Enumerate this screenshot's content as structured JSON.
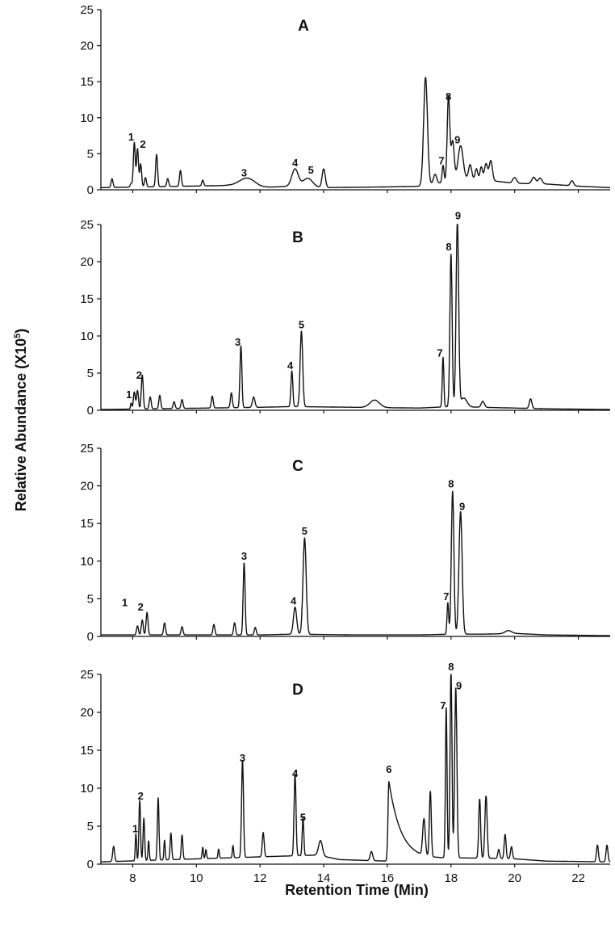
{
  "chart_data": {
    "type": "line",
    "xlabel": "Retention Time (Min)",
    "ylabel": {
      "main": "Relative Abundance (X10",
      "sup": "5",
      "close": ")"
    },
    "xlim": [
      7,
      23
    ],
    "xticks": [
      8,
      10,
      12,
      14,
      16,
      18,
      20,
      22
    ],
    "ylim": [
      0,
      25
    ],
    "yticks": [
      0,
      5,
      10,
      15,
      20,
      25
    ],
    "grid": false,
    "legend": "none",
    "line_color": "#111111",
    "panels": [
      {
        "letter": "A",
        "baseline": [
          [
            7,
            0.3
          ],
          [
            11,
            0.6
          ],
          [
            12,
            0.3
          ],
          [
            13,
            0.5
          ],
          [
            14,
            0.3
          ],
          [
            16,
            0.4
          ],
          [
            17.1,
            0.5
          ],
          [
            17.4,
            0.8
          ],
          [
            18.6,
            1.5
          ],
          [
            19.4,
            1.2
          ],
          [
            20,
            0.9
          ],
          [
            21,
            0.8
          ],
          [
            22,
            0.5
          ],
          [
            23,
            0.3
          ]
        ],
        "peaks": [
          [
            7.35,
            1.2,
            0.03
          ],
          [
            7.95,
            0.5,
            0.03
          ],
          [
            8.05,
            6.2,
            0.03
          ],
          [
            8.15,
            5.3,
            0.03
          ],
          [
            8.25,
            3.2,
            0.03
          ],
          [
            8.4,
            1.3,
            0.03
          ],
          [
            8.75,
            4.5,
            0.03
          ],
          [
            9.1,
            1.1,
            0.03
          ],
          [
            9.5,
            2.2,
            0.03
          ],
          [
            10.2,
            0.8,
            0.03
          ],
          [
            11.6,
            1.2,
            0.25
          ],
          [
            13.1,
            2.4,
            0.1
          ],
          [
            13.5,
            1.2,
            0.15
          ],
          [
            14.0,
            2.6,
            0.05
          ],
          [
            17.2,
            15.0,
            0.06
          ],
          [
            17.5,
            1.3,
            0.05
          ],
          [
            17.75,
            2.4,
            0.03
          ],
          [
            17.92,
            11.8,
            0.04
          ],
          [
            18.05,
            5.6,
            0.05
          ],
          [
            18.3,
            4.8,
            0.08
          ],
          [
            18.6,
            2.0,
            0.05
          ],
          [
            18.8,
            1.5,
            0.04
          ],
          [
            18.95,
            1.8,
            0.04
          ],
          [
            19.1,
            2.3,
            0.05
          ],
          [
            19.25,
            2.8,
            0.05
          ],
          [
            20.0,
            0.8,
            0.06
          ],
          [
            20.6,
            0.9,
            0.06
          ],
          [
            20.8,
            0.8,
            0.06
          ],
          [
            21.8,
            0.7,
            0.05
          ]
        ],
        "labels": [
          [
            "1",
            7.95,
            6.6
          ],
          [
            "2",
            8.32,
            5.6
          ],
          [
            "3",
            11.5,
            1.6
          ],
          [
            "4",
            13.1,
            3.0
          ],
          [
            "5",
            13.6,
            2.0
          ],
          [
            "7",
            17.7,
            3.3
          ],
          [
            "8",
            17.92,
            12.2
          ],
          [
            "9",
            18.2,
            6.2
          ]
        ]
      },
      {
        "letter": "B",
        "baseline": [
          [
            7,
            0.1
          ],
          [
            12,
            0.4
          ],
          [
            13,
            0.5
          ],
          [
            15,
            0.4
          ],
          [
            17,
            0.3
          ],
          [
            18,
            0.5
          ],
          [
            19,
            0.4
          ],
          [
            20,
            0.3
          ],
          [
            21,
            0.2
          ],
          [
            23,
            0.1
          ]
        ],
        "peaks": [
          [
            7.95,
            0.8,
            0.02
          ],
          [
            8.05,
            2.3,
            0.03
          ],
          [
            8.15,
            2.5,
            0.03
          ],
          [
            8.3,
            4.6,
            0.03
          ],
          [
            8.55,
            1.6,
            0.03
          ],
          [
            8.85,
            1.8,
            0.03
          ],
          [
            9.3,
            0.9,
            0.03
          ],
          [
            9.55,
            1.2,
            0.03
          ],
          [
            10.5,
            1.6,
            0.03
          ],
          [
            11.1,
            2.0,
            0.03
          ],
          [
            11.4,
            8.3,
            0.03
          ],
          [
            11.8,
            1.4,
            0.04
          ],
          [
            13.0,
            4.8,
            0.03
          ],
          [
            13.3,
            10.2,
            0.04
          ],
          [
            15.6,
            1.0,
            0.15
          ],
          [
            17.75,
            6.7,
            0.025
          ],
          [
            18.0,
            20.5,
            0.035
          ],
          [
            18.2,
            25.0,
            0.04
          ],
          [
            18.4,
            1.2,
            0.1
          ],
          [
            19.0,
            0.8,
            0.05
          ],
          [
            20.5,
            1.3,
            0.04
          ]
        ],
        "labels": [
          [
            "1",
            7.88,
            1.4
          ],
          [
            "2",
            8.2,
            4.0
          ],
          [
            "3",
            11.3,
            8.5
          ],
          [
            "4",
            12.95,
            5.3
          ],
          [
            "5",
            13.3,
            10.8
          ],
          [
            "7",
            17.65,
            7.0
          ],
          [
            "8",
            17.93,
            21.3
          ],
          [
            "9",
            18.22,
            25.5
          ]
        ]
      },
      {
        "letter": "C",
        "baseline": [
          [
            7,
            0.2
          ],
          [
            12,
            0.2
          ],
          [
            13,
            0.3
          ],
          [
            15,
            0.2
          ],
          [
            17,
            0.2
          ],
          [
            18,
            0.3
          ],
          [
            19,
            0.3
          ],
          [
            20,
            0.4
          ],
          [
            21,
            0.2
          ],
          [
            23,
            0.1
          ]
        ],
        "peaks": [
          [
            8.15,
            1.2,
            0.03
          ],
          [
            8.3,
            2.0,
            0.03
          ],
          [
            8.45,
            3.0,
            0.03
          ],
          [
            9.0,
            1.6,
            0.03
          ],
          [
            9.55,
            1.1,
            0.03
          ],
          [
            10.55,
            1.4,
            0.03
          ],
          [
            11.2,
            1.6,
            0.03
          ],
          [
            11.5,
            9.6,
            0.03
          ],
          [
            11.85,
            1.0,
            0.03
          ],
          [
            13.1,
            3.6,
            0.05
          ],
          [
            13.4,
            12.8,
            0.05
          ],
          [
            17.9,
            4.2,
            0.025
          ],
          [
            18.05,
            19.0,
            0.04
          ],
          [
            18.3,
            16.3,
            0.05
          ],
          [
            19.8,
            0.4,
            0.1
          ]
        ],
        "labels": [
          [
            "1",
            7.75,
            3.8
          ],
          [
            "2",
            8.25,
            3.2
          ],
          [
            "3",
            11.5,
            10.0
          ],
          [
            "4",
            13.05,
            4.0
          ],
          [
            "5",
            13.4,
            13.3
          ],
          [
            "7",
            17.85,
            4.6
          ],
          [
            "8",
            18.0,
            19.6
          ],
          [
            "9",
            18.35,
            16.6
          ]
        ]
      },
      {
        "letter": "D",
        "baseline": [
          [
            7,
            0.3
          ],
          [
            13.8,
            1.2
          ],
          [
            14.5,
            0.6
          ],
          [
            16,
            0.4
          ],
          [
            17,
            0.6
          ],
          [
            18,
            0.8
          ],
          [
            19,
            0.8
          ],
          [
            20,
            0.7
          ],
          [
            21,
            0.4
          ],
          [
            23,
            0.3
          ]
        ],
        "peaks": [
          [
            7.4,
            2.0,
            0.03
          ],
          [
            8.1,
            3.6,
            0.02
          ],
          [
            8.22,
            8.0,
            0.025
          ],
          [
            8.35,
            5.6,
            0.025
          ],
          [
            8.5,
            2.6,
            0.02
          ],
          [
            8.8,
            8.2,
            0.025
          ],
          [
            9.0,
            2.6,
            0.02
          ],
          [
            9.2,
            3.5,
            0.025
          ],
          [
            9.55,
            3.2,
            0.025
          ],
          [
            10.2,
            1.5,
            0.02
          ],
          [
            10.3,
            1.2,
            0.02
          ],
          [
            10.7,
            1.2,
            0.02
          ],
          [
            11.15,
            1.6,
            0.02
          ],
          [
            11.45,
            12.8,
            0.03
          ],
          [
            12.1,
            3.2,
            0.03
          ],
          [
            13.1,
            10.8,
            0.03
          ],
          [
            13.35,
            5.0,
            0.025
          ],
          [
            13.9,
            2.0,
            0.06
          ],
          [
            15.5,
            1.2,
            0.04
          ],
          [
            17.15,
            4.8,
            0.04
          ],
          [
            17.35,
            8.6,
            0.03
          ],
          [
            17.85,
            19.8,
            0.025
          ],
          [
            18.0,
            24.7,
            0.03
          ],
          [
            18.15,
            22.4,
            0.035
          ],
          [
            18.9,
            7.8,
            0.03
          ],
          [
            19.1,
            8.2,
            0.035
          ],
          [
            19.5,
            1.2,
            0.03
          ],
          [
            19.7,
            3.2,
            0.03
          ],
          [
            19.9,
            1.6,
            0.03
          ],
          [
            22.6,
            2.2,
            0.03
          ],
          [
            22.9,
            2.2,
            0.03
          ]
        ],
        "tail_peak": [
          16.05,
          10.5
        ],
        "labels": [
          [
            "1",
            8.08,
            4.0
          ],
          [
            "2",
            8.25,
            8.3
          ],
          [
            "3",
            11.45,
            13.3
          ],
          [
            "4",
            13.1,
            11.3
          ],
          [
            "5",
            13.35,
            5.5
          ],
          [
            "6",
            16.05,
            11.8
          ],
          [
            "7",
            17.75,
            20.2
          ],
          [
            "8",
            18.0,
            25.3
          ],
          [
            "9",
            18.25,
            22.8
          ]
        ]
      }
    ]
  }
}
